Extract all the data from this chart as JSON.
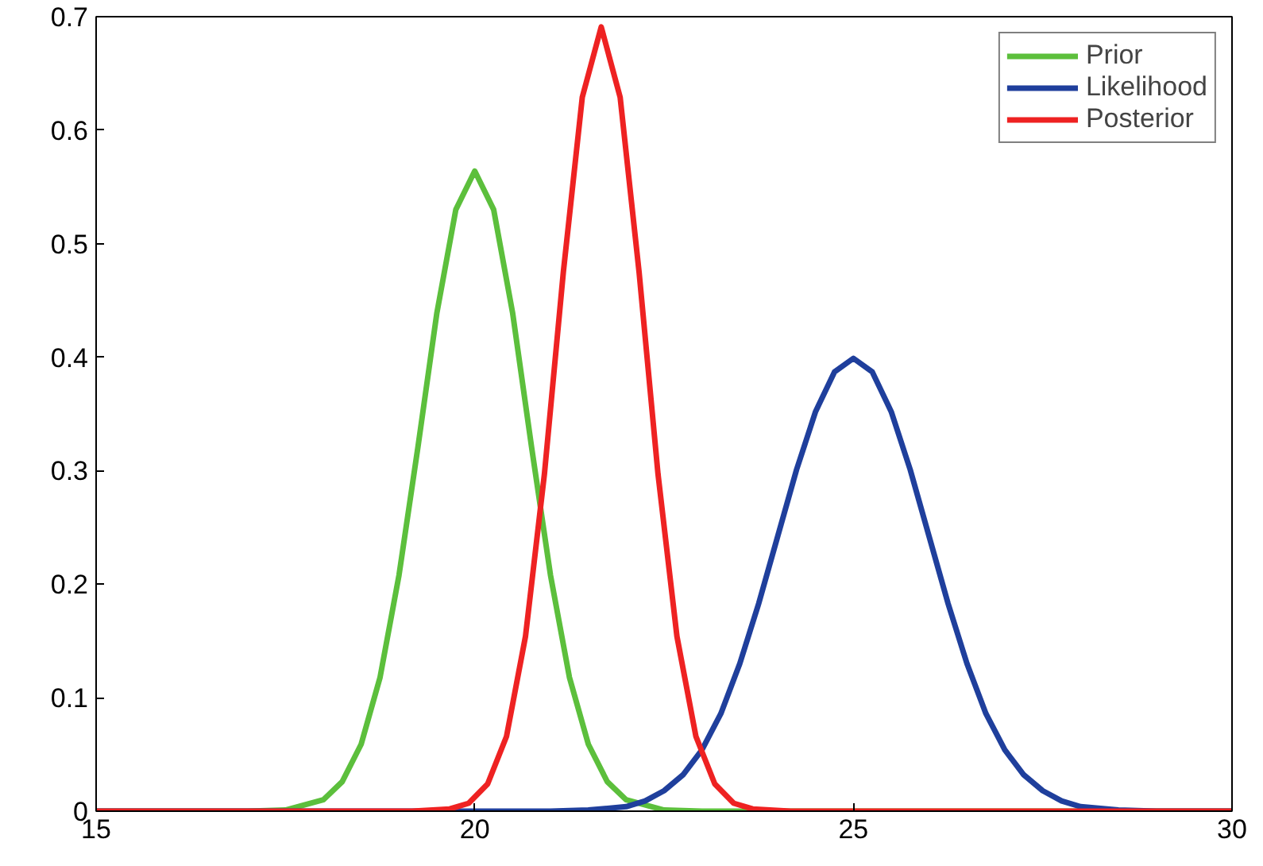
{
  "chart_data": {
    "type": "line",
    "xlim": [
      15,
      30
    ],
    "ylim": [
      0,
      0.7
    ],
    "xticks": [
      15,
      20,
      25,
      30
    ],
    "yticks": [
      0,
      0.1,
      0.2,
      0.3,
      0.4,
      0.5,
      0.6,
      0.7
    ],
    "grid": false,
    "legend": "top right",
    "line_style": "solid",
    "marker": "none",
    "series": [
      {
        "name": "Prior",
        "color": "#5cbf3c",
        "x": [
          15,
          17,
          17.5,
          18,
          18.25,
          18.5,
          18.75,
          19,
          19.25,
          19.5,
          19.75,
          20,
          20.25,
          20.5,
          20.75,
          21,
          21.25,
          21.5,
          21.75,
          22,
          22.5,
          23,
          30
        ],
        "values": [
          0,
          0,
          0.001,
          0.01,
          0.026,
          0.059,
          0.118,
          0.208,
          0.321,
          0.439,
          0.53,
          0.564,
          0.53,
          0.439,
          0.321,
          0.208,
          0.118,
          0.059,
          0.026,
          0.01,
          0.001,
          0,
          0
        ]
      },
      {
        "name": "Likelihood",
        "color": "#1f3f9c",
        "x": [
          15,
          21,
          21.5,
          22,
          22.25,
          22.5,
          22.75,
          23,
          23.25,
          23.5,
          23.75,
          24,
          24.25,
          24.5,
          24.75,
          25,
          25.25,
          25.5,
          25.75,
          26,
          26.25,
          26.5,
          26.75,
          27,
          27.25,
          27.5,
          27.75,
          28,
          28.5,
          29,
          30
        ],
        "values": [
          0,
          0,
          0.001,
          0.004,
          0.009,
          0.018,
          0.032,
          0.054,
          0.086,
          0.13,
          0.183,
          0.242,
          0.301,
          0.352,
          0.387,
          0.399,
          0.387,
          0.352,
          0.301,
          0.242,
          0.183,
          0.13,
          0.086,
          0.054,
          0.032,
          0.018,
          0.009,
          0.004,
          0.001,
          0,
          0
        ]
      },
      {
        "name": "Posterior",
        "color": "#ee2222",
        "x": [
          15,
          19.17,
          19.67,
          19.92,
          20.17,
          20.42,
          20.67,
          20.92,
          21.17,
          21.42,
          21.67,
          21.92,
          22.17,
          22.42,
          22.67,
          22.92,
          23.17,
          23.42,
          23.67,
          24.17,
          30
        ],
        "values": [
          0,
          0,
          0.002,
          0.007,
          0.024,
          0.066,
          0.154,
          0.297,
          0.475,
          0.629,
          0.691,
          0.629,
          0.475,
          0.297,
          0.154,
          0.066,
          0.024,
          0.007,
          0.002,
          0,
          0
        ]
      }
    ]
  }
}
